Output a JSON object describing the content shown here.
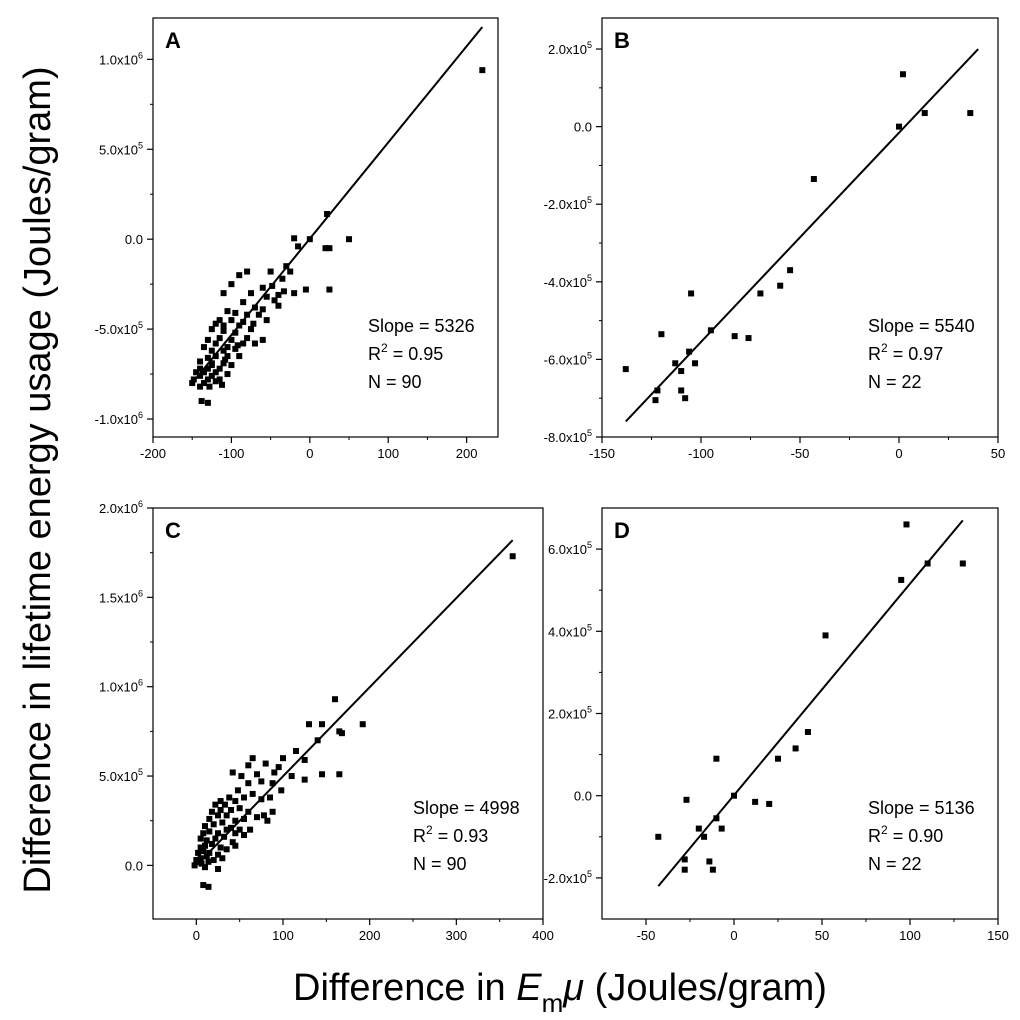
{
  "figure": {
    "ylabel": "Difference in lifetime energy usage (Joules/gram)",
    "xlabel": {
      "prefix": "Difference in ",
      "E": "E",
      "sub": "m",
      "mu": "μ",
      "suffix": " (Joules/gram)"
    }
  },
  "chart_data": [
    {
      "type": "scatter",
      "panel": "A",
      "xlim": [
        -200,
        240
      ],
      "ylim": [
        -1100000,
        1230000
      ],
      "xticks": [
        {
          "v": -200,
          "label": "-200"
        },
        {
          "v": -100,
          "label": "-100"
        },
        {
          "v": 0,
          "label": "0"
        },
        {
          "v": 100,
          "label": "100"
        },
        {
          "v": 200,
          "label": "200"
        }
      ],
      "yticks": [
        {
          "v": -1000000,
          "m": "-1.0x10",
          "e": "6"
        },
        {
          "v": -500000,
          "m": "-5.0x10",
          "e": "5"
        },
        {
          "v": 0,
          "m": "0.0",
          "e": ""
        },
        {
          "v": 500000,
          "m": "5.0x10",
          "e": "5"
        },
        {
          "v": 1000000,
          "m": "1.0x10",
          "e": "6"
        }
      ],
      "fit": {
        "x1": -150,
        "y1": -800000,
        "x2": 220,
        "y2": 1180000
      },
      "stats": {
        "slope": "Slope = 5326",
        "r2_label": "R",
        "r2_value": " = 0.95",
        "n": "N = 90"
      },
      "points": [
        [
          220,
          940000
        ],
        [
          22,
          140000
        ],
        [
          -20,
          5000
        ],
        [
          0,
          0
        ],
        [
          -15,
          -40000
        ],
        [
          25,
          -50000
        ],
        [
          50,
          0
        ],
        [
          20,
          -50000
        ],
        [
          -30,
          -150000
        ],
        [
          -25,
          -180000
        ],
        [
          -35,
          -220000
        ],
        [
          -20,
          -300000
        ],
        [
          -5,
          -280000
        ],
        [
          25,
          -280000
        ],
        [
          -50,
          -180000
        ],
        [
          -60,
          -270000
        ],
        [
          -80,
          -180000
        ],
        [
          -90,
          -200000
        ],
        [
          -100,
          -250000
        ],
        [
          -110,
          -300000
        ],
        [
          -75,
          -300000
        ],
        [
          -45,
          -340000
        ],
        [
          -55,
          -320000
        ],
        [
          -40,
          -370000
        ],
        [
          -60,
          -390000
        ],
        [
          -70,
          -380000
        ],
        [
          -65,
          -420000
        ],
        [
          -80,
          -420000
        ],
        [
          -95,
          -410000
        ],
        [
          -105,
          -400000
        ],
        [
          -115,
          -450000
        ],
        [
          -100,
          -450000
        ],
        [
          -85,
          -460000
        ],
        [
          -75,
          -500000
        ],
        [
          -90,
          -480000
        ],
        [
          -110,
          -480000
        ],
        [
          -120,
          -470000
        ],
        [
          -125,
          -500000
        ],
        [
          -110,
          -510000
        ],
        [
          -95,
          -520000
        ],
        [
          -80,
          -550000
        ],
        [
          -70,
          -580000
        ],
        [
          -60,
          -560000
        ],
        [
          -85,
          -580000
        ],
        [
          -100,
          -560000
        ],
        [
          -115,
          -550000
        ],
        [
          -130,
          -560000
        ],
        [
          -120,
          -580000
        ],
        [
          -105,
          -600000
        ],
        [
          -95,
          -610000
        ],
        [
          -110,
          -620000
        ],
        [
          -125,
          -620000
        ],
        [
          -135,
          -600000
        ],
        [
          -120,
          -650000
        ],
        [
          -105,
          -650000
        ],
        [
          -90,
          -650000
        ],
        [
          -130,
          -660000
        ],
        [
          -140,
          -680000
        ],
        [
          -125,
          -690000
        ],
        [
          -110,
          -690000
        ],
        [
          -100,
          -700000
        ],
        [
          -115,
          -720000
        ],
        [
          -130,
          -720000
        ],
        [
          -140,
          -720000
        ],
        [
          -145,
          -740000
        ],
        [
          -135,
          -740000
        ],
        [
          -120,
          -740000
        ],
        [
          -105,
          -750000
        ],
        [
          -125,
          -760000
        ],
        [
          -140,
          -760000
        ],
        [
          -148,
          -780000
        ],
        [
          -130,
          -780000
        ],
        [
          -115,
          -780000
        ],
        [
          -150,
          -800000
        ],
        [
          -135,
          -800000
        ],
        [
          -120,
          -790000
        ],
        [
          -140,
          -820000
        ],
        [
          -128,
          -820000
        ],
        [
          -112,
          -810000
        ],
        [
          -138,
          -900000
        ],
        [
          -130,
          -910000
        ],
        [
          -125,
          -700000
        ],
        [
          -108,
          -670000
        ],
        [
          -92,
          -590000
        ],
        [
          -72,
          -470000
        ],
        [
          -48,
          -260000
        ],
        [
          -40,
          -310000
        ],
        [
          -33,
          -290000
        ],
        [
          -85,
          -350000
        ],
        [
          -55,
          -450000
        ]
      ]
    },
    {
      "type": "scatter",
      "panel": "B",
      "xlim": [
        -150,
        50
      ],
      "ylim": [
        -800000,
        280000
      ],
      "xticks": [
        {
          "v": -150,
          "label": "-150"
        },
        {
          "v": -100,
          "label": "-100"
        },
        {
          "v": -50,
          "label": "-50"
        },
        {
          "v": 0,
          "label": "0"
        },
        {
          "v": 50,
          "label": "50"
        }
      ],
      "yticks": [
        {
          "v": -800000,
          "m": "-8.0x10",
          "e": "5"
        },
        {
          "v": -600000,
          "m": "-6.0x10",
          "e": "5"
        },
        {
          "v": -400000,
          "m": "-4.0x10",
          "e": "5"
        },
        {
          "v": -200000,
          "m": "-2.0x10",
          "e": "5"
        },
        {
          "v": 0,
          "m": "0.0",
          "e": ""
        },
        {
          "v": 200000,
          "m": "2.0x10",
          "e": "5"
        }
      ],
      "fit": {
        "x1": -138,
        "y1": -760000,
        "x2": 40,
        "y2": 200000
      },
      "stats": {
        "slope": "Slope = 5540",
        "r2_label": "R",
        "r2_value": " = 0.97",
        "n": "N = 22"
      },
      "points": [
        [
          2,
          135000
        ],
        [
          0,
          0
        ],
        [
          13,
          35000
        ],
        [
          36,
          35000
        ],
        [
          -43,
          -135000
        ],
        [
          -55,
          -370000
        ],
        [
          -60,
          -410000
        ],
        [
          -70,
          -430000
        ],
        [
          -76,
          -545000
        ],
        [
          -83,
          -540000
        ],
        [
          -95,
          -525000
        ],
        [
          -103,
          -610000
        ],
        [
          -105,
          -430000
        ],
        [
          -106,
          -580000
        ],
        [
          -108,
          -700000
        ],
        [
          -110,
          -680000
        ],
        [
          -110,
          -630000
        ],
        [
          -113,
          -610000
        ],
        [
          -120,
          -535000
        ],
        [
          -122,
          -680000
        ],
        [
          -123,
          -705000
        ],
        [
          -138,
          -625000
        ]
      ]
    },
    {
      "type": "scatter",
      "panel": "C",
      "xlim": [
        -50,
        400
      ],
      "ylim": [
        -300000,
        2000000
      ],
      "xticks": [
        {
          "v": 0,
          "label": "0"
        },
        {
          "v": 100,
          "label": "100"
        },
        {
          "v": 200,
          "label": "200"
        },
        {
          "v": 300,
          "label": "300"
        },
        {
          "v": 400,
          "label": "400"
        }
      ],
      "yticks": [
        {
          "v": 0,
          "m": "0.0",
          "e": ""
        },
        {
          "v": 500000,
          "m": "5.0x10",
          "e": "5"
        },
        {
          "v": 1000000,
          "m": "1.0x10",
          "e": "6"
        },
        {
          "v": 1500000,
          "m": "1.5x10",
          "e": "6"
        },
        {
          "v": 2000000,
          "m": "2.0x10",
          "e": "6"
        }
      ],
      "fit": {
        "x1": 0,
        "y1": 0,
        "x2": 365,
        "y2": 1820000
      },
      "stats": {
        "slope": "Slope = 4998",
        "r2_label": "R",
        "r2_value": " = 0.93",
        "n": "N = 90"
      },
      "points": [
        [
          365,
          1730000
        ],
        [
          160,
          930000
        ],
        [
          192,
          790000
        ],
        [
          130,
          790000
        ],
        [
          145,
          790000
        ],
        [
          168,
          740000
        ],
        [
          165,
          750000
        ],
        [
          140,
          700000
        ],
        [
          115,
          640000
        ],
        [
          100,
          600000
        ],
        [
          125,
          590000
        ],
        [
          65,
          600000
        ],
        [
          95,
          550000
        ],
        [
          80,
          570000
        ],
        [
          60,
          560000
        ],
        [
          52,
          500000
        ],
        [
          42,
          520000
        ],
        [
          70,
          510000
        ],
        [
          90,
          520000
        ],
        [
          110,
          500000
        ],
        [
          125,
          480000
        ],
        [
          145,
          510000
        ],
        [
          165,
          510000
        ],
        [
          60,
          460000
        ],
        [
          75,
          470000
        ],
        [
          88,
          460000
        ],
        [
          98,
          420000
        ],
        [
          48,
          420000
        ],
        [
          38,
          380000
        ],
        [
          28,
          360000
        ],
        [
          22,
          340000
        ],
        [
          33,
          340000
        ],
        [
          45,
          360000
        ],
        [
          55,
          380000
        ],
        [
          65,
          400000
        ],
        [
          75,
          370000
        ],
        [
          85,
          380000
        ],
        [
          18,
          300000
        ],
        [
          28,
          310000
        ],
        [
          40,
          310000
        ],
        [
          50,
          320000
        ],
        [
          60,
          300000
        ],
        [
          78,
          280000
        ],
        [
          88,
          300000
        ],
        [
          15,
          260000
        ],
        [
          25,
          280000
        ],
        [
          35,
          280000
        ],
        [
          45,
          250000
        ],
        [
          55,
          260000
        ],
        [
          70,
          270000
        ],
        [
          82,
          250000
        ],
        [
          10,
          220000
        ],
        [
          20,
          230000
        ],
        [
          30,
          240000
        ],
        [
          40,
          210000
        ],
        [
          50,
          200000
        ],
        [
          62,
          200000
        ],
        [
          8,
          180000
        ],
        [
          15,
          190000
        ],
        [
          25,
          180000
        ],
        [
          35,
          200000
        ],
        [
          45,
          180000
        ],
        [
          55,
          170000
        ],
        [
          5,
          150000
        ],
        [
          12,
          140000
        ],
        [
          22,
          150000
        ],
        [
          32,
          160000
        ],
        [
          42,
          130000
        ],
        [
          5,
          100000
        ],
        [
          10,
          110000
        ],
        [
          18,
          120000
        ],
        [
          28,
          100000
        ],
        [
          35,
          90000
        ],
        [
          45,
          110000
        ],
        [
          2,
          70000
        ],
        [
          8,
          80000
        ],
        [
          15,
          70000
        ],
        [
          25,
          60000
        ],
        [
          0,
          30000
        ],
        [
          5,
          40000
        ],
        [
          12,
          50000
        ],
        [
          20,
          30000
        ],
        [
          30,
          40000
        ],
        [
          -2,
          0
        ],
        [
          6,
          10000
        ],
        [
          14,
          20000
        ],
        [
          10,
          -10000
        ],
        [
          25,
          -20000
        ],
        [
          8,
          -110000
        ],
        [
          14,
          -120000
        ]
      ]
    },
    {
      "type": "scatter",
      "panel": "D",
      "xlim": [
        -75,
        150
      ],
      "ylim": [
        -300000,
        700000
      ],
      "xticks": [
        {
          "v": -50,
          "label": "-50"
        },
        {
          "v": 0,
          "label": "0"
        },
        {
          "v": 50,
          "label": "50"
        },
        {
          "v": 100,
          "label": "100"
        },
        {
          "v": 150,
          "label": "150"
        }
      ],
      "yticks": [
        {
          "v": -200000,
          "m": "-2.0x10",
          "e": "5"
        },
        {
          "v": 0,
          "m": "0.0",
          "e": ""
        },
        {
          "v": 200000,
          "m": "2.0x10",
          "e": "5"
        },
        {
          "v": 400000,
          "m": "4.0x10",
          "e": "5"
        },
        {
          "v": 600000,
          "m": "6.0x10",
          "e": "5"
        }
      ],
      "fit": {
        "x1": -43,
        "y1": -220000,
        "x2": 130,
        "y2": 670000
      },
      "stats": {
        "slope": "Slope = 5136",
        "r2_label": "R",
        "r2_value": " = 0.90",
        "n": "N = 22"
      },
      "points": [
        [
          98,
          660000
        ],
        [
          95,
          525000
        ],
        [
          110,
          565000
        ],
        [
          130,
          565000
        ],
        [
          52,
          390000
        ],
        [
          42,
          155000
        ],
        [
          35,
          115000
        ],
        [
          25,
          90000
        ],
        [
          -10,
          90000
        ],
        [
          0,
          0
        ],
        [
          12,
          -15000
        ],
        [
          20,
          -20000
        ],
        [
          -27,
          -10000
        ],
        [
          -43,
          -100000
        ],
        [
          -20,
          -80000
        ],
        [
          -17,
          -100000
        ],
        [
          -10,
          -55000
        ],
        [
          -7,
          -80000
        ],
        [
          -28,
          -155000
        ],
        [
          -28,
          -180000
        ],
        [
          -14,
          -160000
        ],
        [
          -12,
          -180000
        ]
      ]
    }
  ]
}
